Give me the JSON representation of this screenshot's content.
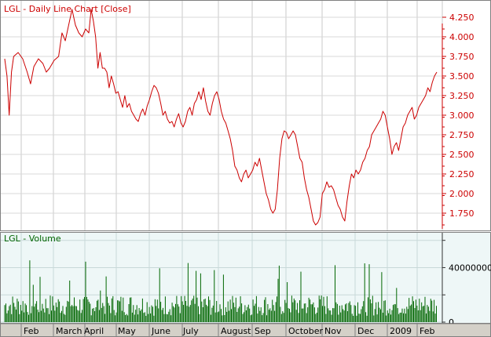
{
  "chart_data": [
    {
      "type": "line",
      "title": "LGL - Daily Line Chart [Close]",
      "series": [
        {
          "name": "Close",
          "color": "#cc0000"
        }
      ],
      "y_ticks": [
        "1.750",
        "2.000",
        "2.250",
        "2.500",
        "2.750",
        "3.000",
        "3.250",
        "3.500",
        "3.750",
        "4.000",
        "4.250"
      ],
      "ylim": [
        1.55,
        4.45
      ],
      "grid": true,
      "points": [
        [
          0,
          3.72
        ],
        [
          2,
          3.5
        ],
        [
          4,
          3.0
        ],
        [
          6,
          3.55
        ],
        [
          8,
          3.75
        ],
        [
          12,
          3.8
        ],
        [
          16,
          3.72
        ],
        [
          20,
          3.55
        ],
        [
          23,
          3.4
        ],
        [
          26,
          3.62
        ],
        [
          30,
          3.72
        ],
        [
          34,
          3.66
        ],
        [
          37,
          3.55
        ],
        [
          40,
          3.6
        ],
        [
          44,
          3.7
        ],
        [
          48,
          3.75
        ],
        [
          51,
          4.05
        ],
        [
          54,
          3.95
        ],
        [
          57,
          4.15
        ],
        [
          60,
          4.35
        ],
        [
          63,
          4.15
        ],
        [
          66,
          4.05
        ],
        [
          69,
          4.0
        ],
        [
          72,
          4.1
        ],
        [
          75,
          4.05
        ],
        [
          77,
          4.35
        ],
        [
          79,
          4.2
        ],
        [
          81,
          4.0
        ],
        [
          83,
          3.6
        ],
        [
          85,
          3.8
        ],
        [
          87,
          3.6
        ],
        [
          89,
          3.6
        ],
        [
          91,
          3.55
        ],
        [
          93,
          3.35
        ],
        [
          95,
          3.5
        ],
        [
          97,
          3.4
        ],
        [
          99,
          3.28
        ],
        [
          101,
          3.3
        ],
        [
          103,
          3.2
        ],
        [
          105,
          3.1
        ],
        [
          107,
          3.25
        ],
        [
          109,
          3.1
        ],
        [
          111,
          3.15
        ],
        [
          113,
          3.05
        ],
        [
          115,
          3.0
        ],
        [
          117,
          2.95
        ],
        [
          119,
          2.92
        ],
        [
          121,
          3.02
        ],
        [
          123,
          3.08
        ],
        [
          125,
          3.0
        ],
        [
          127,
          3.12
        ],
        [
          129,
          3.2
        ],
        [
          131,
          3.3
        ],
        [
          133,
          3.38
        ],
        [
          135,
          3.35
        ],
        [
          137,
          3.28
        ],
        [
          139,
          3.15
        ],
        [
          141,
          3.0
        ],
        [
          143,
          3.05
        ],
        [
          145,
          2.95
        ],
        [
          147,
          2.9
        ],
        [
          149,
          2.92
        ],
        [
          151,
          2.85
        ],
        [
          153,
          2.95
        ],
        [
          155,
          3.02
        ],
        [
          157,
          2.9
        ],
        [
          159,
          2.85
        ],
        [
          161,
          2.92
        ],
        [
          163,
          3.05
        ],
        [
          165,
          3.1
        ],
        [
          167,
          3.0
        ],
        [
          169,
          3.15
        ],
        [
          171,
          3.2
        ],
        [
          173,
          3.3
        ],
        [
          175,
          3.2
        ],
        [
          177,
          3.35
        ],
        [
          179,
          3.18
        ],
        [
          181,
          3.05
        ],
        [
          183,
          3.0
        ],
        [
          185,
          3.15
        ],
        [
          187,
          3.25
        ],
        [
          189,
          3.3
        ],
        [
          191,
          3.2
        ],
        [
          193,
          3.05
        ],
        [
          195,
          2.95
        ],
        [
          197,
          2.9
        ],
        [
          199,
          2.8
        ],
        [
          201,
          2.7
        ],
        [
          203,
          2.55
        ],
        [
          205,
          2.35
        ],
        [
          207,
          2.3
        ],
        [
          209,
          2.2
        ],
        [
          211,
          2.15
        ],
        [
          213,
          2.25
        ],
        [
          215,
          2.3
        ],
        [
          217,
          2.2
        ],
        [
          219,
          2.25
        ],
        [
          221,
          2.3
        ],
        [
          223,
          2.4
        ],
        [
          225,
          2.35
        ],
        [
          227,
          2.45
        ],
        [
          229,
          2.3
        ],
        [
          231,
          2.15
        ],
        [
          233,
          2.0
        ],
        [
          235,
          1.92
        ],
        [
          237,
          1.8
        ],
        [
          239,
          1.75
        ],
        [
          241,
          1.8
        ],
        [
          243,
          2.05
        ],
        [
          245,
          2.45
        ],
        [
          247,
          2.7
        ],
        [
          249,
          2.8
        ],
        [
          251,
          2.78
        ],
        [
          253,
          2.7
        ],
        [
          255,
          2.75
        ],
        [
          257,
          2.8
        ],
        [
          259,
          2.75
        ],
        [
          261,
          2.6
        ],
        [
          263,
          2.45
        ],
        [
          265,
          2.4
        ],
        [
          267,
          2.2
        ],
        [
          269,
          2.05
        ],
        [
          271,
          1.95
        ],
        [
          273,
          1.8
        ],
        [
          275,
          1.65
        ],
        [
          277,
          1.6
        ],
        [
          279,
          1.63
        ],
        [
          281,
          1.7
        ],
        [
          283,
          2.0
        ],
        [
          285,
          2.05
        ],
        [
          287,
          2.15
        ],
        [
          289,
          2.08
        ],
        [
          291,
          2.1
        ],
        [
          293,
          2.05
        ],
        [
          295,
          1.95
        ],
        [
          297,
          1.85
        ],
        [
          299,
          1.8
        ],
        [
          301,
          1.7
        ],
        [
          303,
          1.65
        ],
        [
          305,
          1.9
        ],
        [
          307,
          2.1
        ],
        [
          309,
          2.25
        ],
        [
          311,
          2.2
        ],
        [
          313,
          2.3
        ],
        [
          315,
          2.25
        ],
        [
          317,
          2.3
        ],
        [
          319,
          2.4
        ],
        [
          321,
          2.45
        ],
        [
          323,
          2.55
        ],
        [
          325,
          2.6
        ],
        [
          327,
          2.75
        ],
        [
          329,
          2.8
        ],
        [
          331,
          2.85
        ],
        [
          333,
          2.9
        ],
        [
          335,
          2.95
        ],
        [
          337,
          3.05
        ],
        [
          339,
          3.0
        ],
        [
          341,
          2.85
        ],
        [
          343,
          2.7
        ],
        [
          345,
          2.5
        ],
        [
          347,
          2.6
        ],
        [
          349,
          2.65
        ],
        [
          351,
          2.55
        ],
        [
          353,
          2.7
        ],
        [
          355,
          2.85
        ],
        [
          357,
          2.9
        ],
        [
          359,
          3.0
        ],
        [
          361,
          3.05
        ],
        [
          363,
          3.1
        ],
        [
          365,
          2.95
        ],
        [
          367,
          3.0
        ],
        [
          369,
          3.1
        ],
        [
          371,
          3.15
        ],
        [
          373,
          3.2
        ],
        [
          375,
          3.25
        ],
        [
          377,
          3.35
        ],
        [
          379,
          3.3
        ],
        [
          381,
          3.42
        ],
        [
          383,
          3.5
        ],
        [
          385,
          3.55
        ]
      ]
    },
    {
      "type": "bar",
      "title": "LGL - Volume",
      "y_ticks": [
        "0",
        "40000000"
      ],
      "ylim": [
        0,
        65000000
      ],
      "color": "#006600"
    }
  ],
  "x_axis": {
    "labels": [
      "Feb",
      "March",
      "April",
      "May",
      "June",
      "July",
      "August",
      "Sep",
      "October",
      "Nov",
      "Dec",
      "2009",
      "Feb"
    ]
  }
}
